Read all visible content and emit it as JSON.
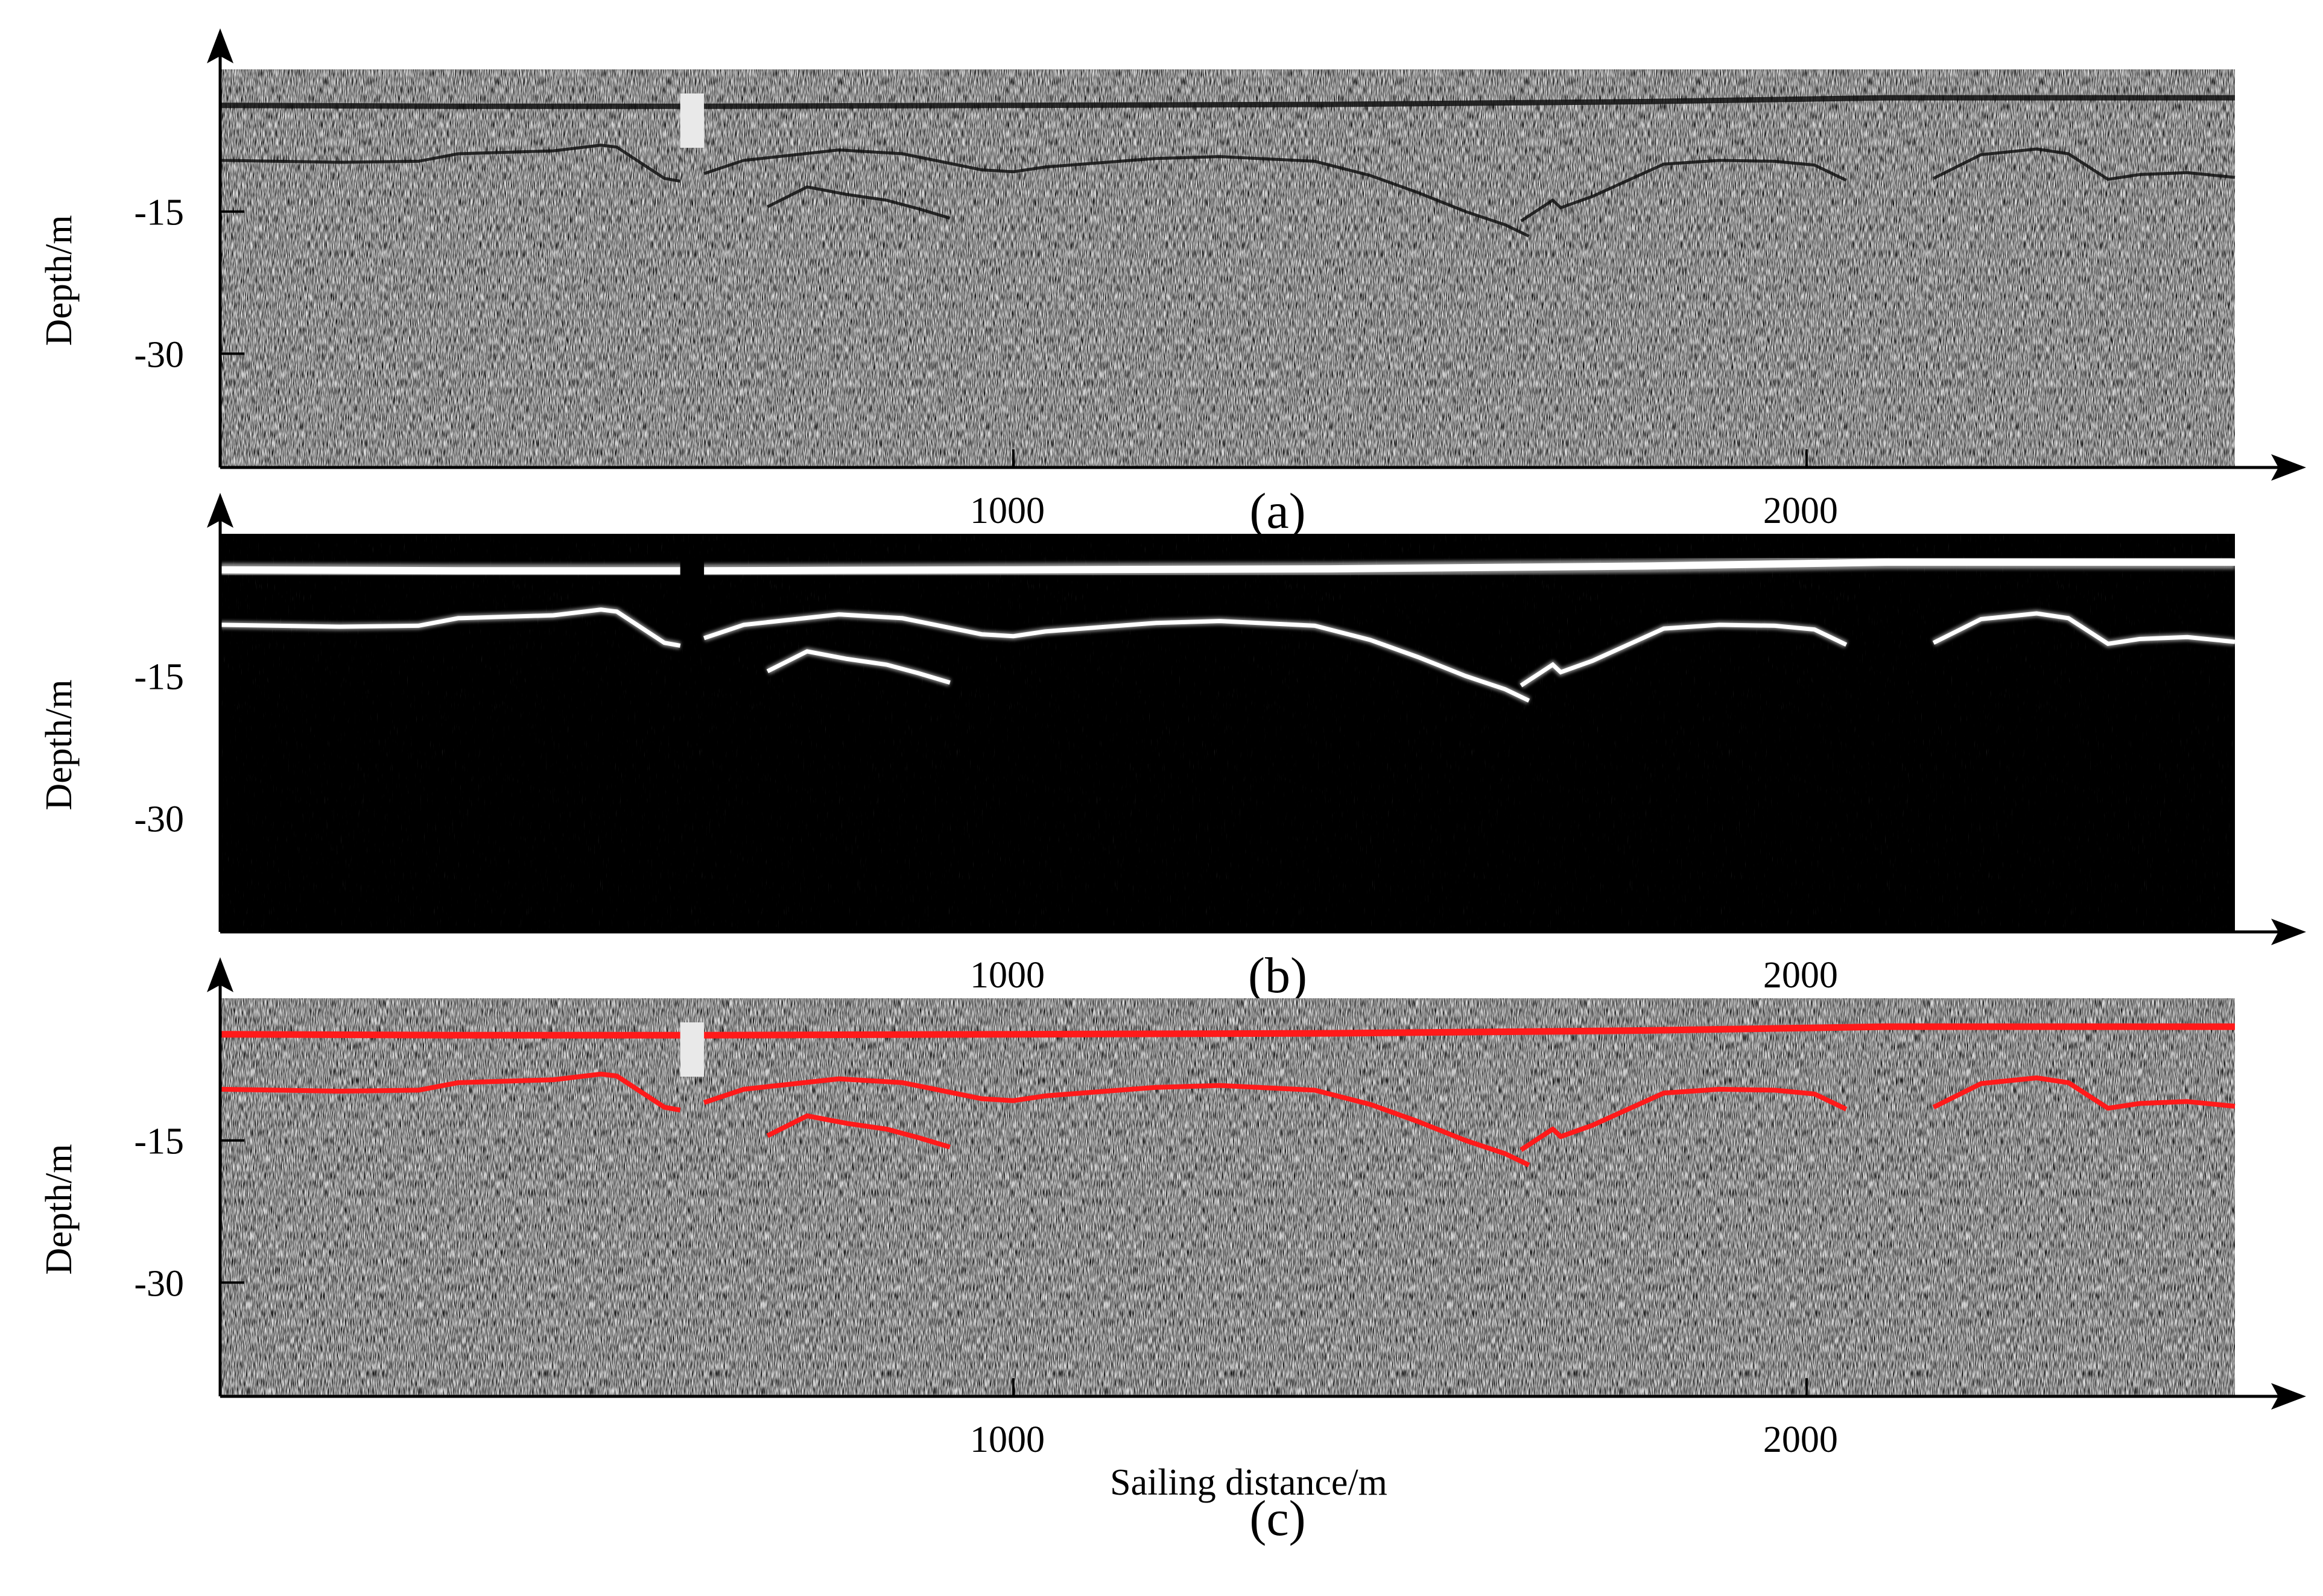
{
  "figure": {
    "x_axis_title": "Sailing distance/m",
    "x_ticks": [
      {
        "value": 1000,
        "label": "1000"
      },
      {
        "value": 2000,
        "label": "2000"
      }
    ],
    "y_ticks": [
      {
        "value": -15,
        "label": "-15"
      },
      {
        "value": -30,
        "label": "-30"
      }
    ],
    "x_range_m": [
      0,
      2540
    ],
    "depth_range_m": [
      0,
      -42
    ]
  },
  "panels": [
    {
      "id": "a",
      "label": "(a)",
      "y_axis_title": "Depth/m",
      "image_style": "raw sub-bottom profile, grayscale noise (white background, dark reflectors)"
    },
    {
      "id": "b",
      "label": "(b)",
      "y_axis_title": "Depth/m",
      "image_style": "processed profile, black background with white reflectors"
    },
    {
      "id": "c",
      "label": "(c)",
      "y_axis_title": "Depth/m",
      "image_style": "raw profile overlaid with detected layer boundaries in red"
    }
  ],
  "colors": {
    "raw_light": "#dadada",
    "processed_background": "#000000",
    "reflector_white": "#ffffff",
    "detection_red": "#ff1a1a",
    "axis": "#000000"
  },
  "reflectors": [
    {
      "name": "seabed",
      "points": [
        [
          0,
          -3.8
        ],
        [
          300,
          -3.9
        ],
        [
          600,
          -3.9
        ],
        [
          1000,
          -3.8
        ],
        [
          1400,
          -3.7
        ],
        [
          1800,
          -3.4
        ],
        [
          2100,
          -3.0
        ],
        [
          2540,
          -3.0
        ]
      ],
      "gap": [
        580,
        610
      ]
    },
    {
      "name": "sub-bottom-1",
      "points": [
        [
          0,
          -9.6
        ],
        [
          150,
          -9.8
        ],
        [
          250,
          -9.7
        ],
        [
          300,
          -8.9
        ],
        [
          420,
          -8.6
        ],
        [
          480,
          -8.0
        ],
        [
          500,
          -8.2
        ],
        [
          560,
          -11.5
        ],
        [
          580,
          -11.8
        ]
      ],
      "gap": null
    },
    {
      "name": "sub-bottom-2",
      "points": [
        [
          610,
          -11.0
        ],
        [
          660,
          -9.6
        ],
        [
          780,
          -8.5
        ],
        [
          860,
          -8.9
        ],
        [
          960,
          -10.6
        ],
        [
          1000,
          -10.8
        ],
        [
          1040,
          -10.3
        ],
        [
          1180,
          -9.4
        ],
        [
          1260,
          -9.2
        ],
        [
          1380,
          -9.7
        ],
        [
          1450,
          -11.2
        ],
        [
          1510,
          -13.0
        ],
        [
          1570,
          -15.0
        ],
        [
          1620,
          -16.4
        ],
        [
          1650,
          -17.6
        ]
      ],
      "gap": null
    },
    {
      "name": "sub-bottom-3",
      "points": [
        [
          1640,
          -16.0
        ],
        [
          1680,
          -13.8
        ],
        [
          1690,
          -14.6
        ],
        [
          1730,
          -13.4
        ],
        [
          1820,
          -10.0
        ],
        [
          1890,
          -9.6
        ],
        [
          1960,
          -9.7
        ],
        [
          2010,
          -10.1
        ],
        [
          2050,
          -11.7
        ]
      ],
      "gap": null
    },
    {
      "name": "sub-bottom-4",
      "points": [
        [
          2160,
          -11.5
        ],
        [
          2220,
          -9.0
        ],
        [
          2290,
          -8.4
        ],
        [
          2330,
          -8.9
        ],
        [
          2380,
          -11.6
        ],
        [
          2420,
          -11.1
        ],
        [
          2480,
          -10.9
        ],
        [
          2540,
          -11.4
        ]
      ],
      "gap": null
    },
    {
      "name": "deep-1",
      "points": [
        [
          690,
          -14.5
        ],
        [
          740,
          -12.4
        ],
        [
          790,
          -13.2
        ],
        [
          840,
          -13.8
        ],
        [
          880,
          -14.7
        ],
        [
          920,
          -15.7
        ]
      ],
      "gap": null
    }
  ]
}
